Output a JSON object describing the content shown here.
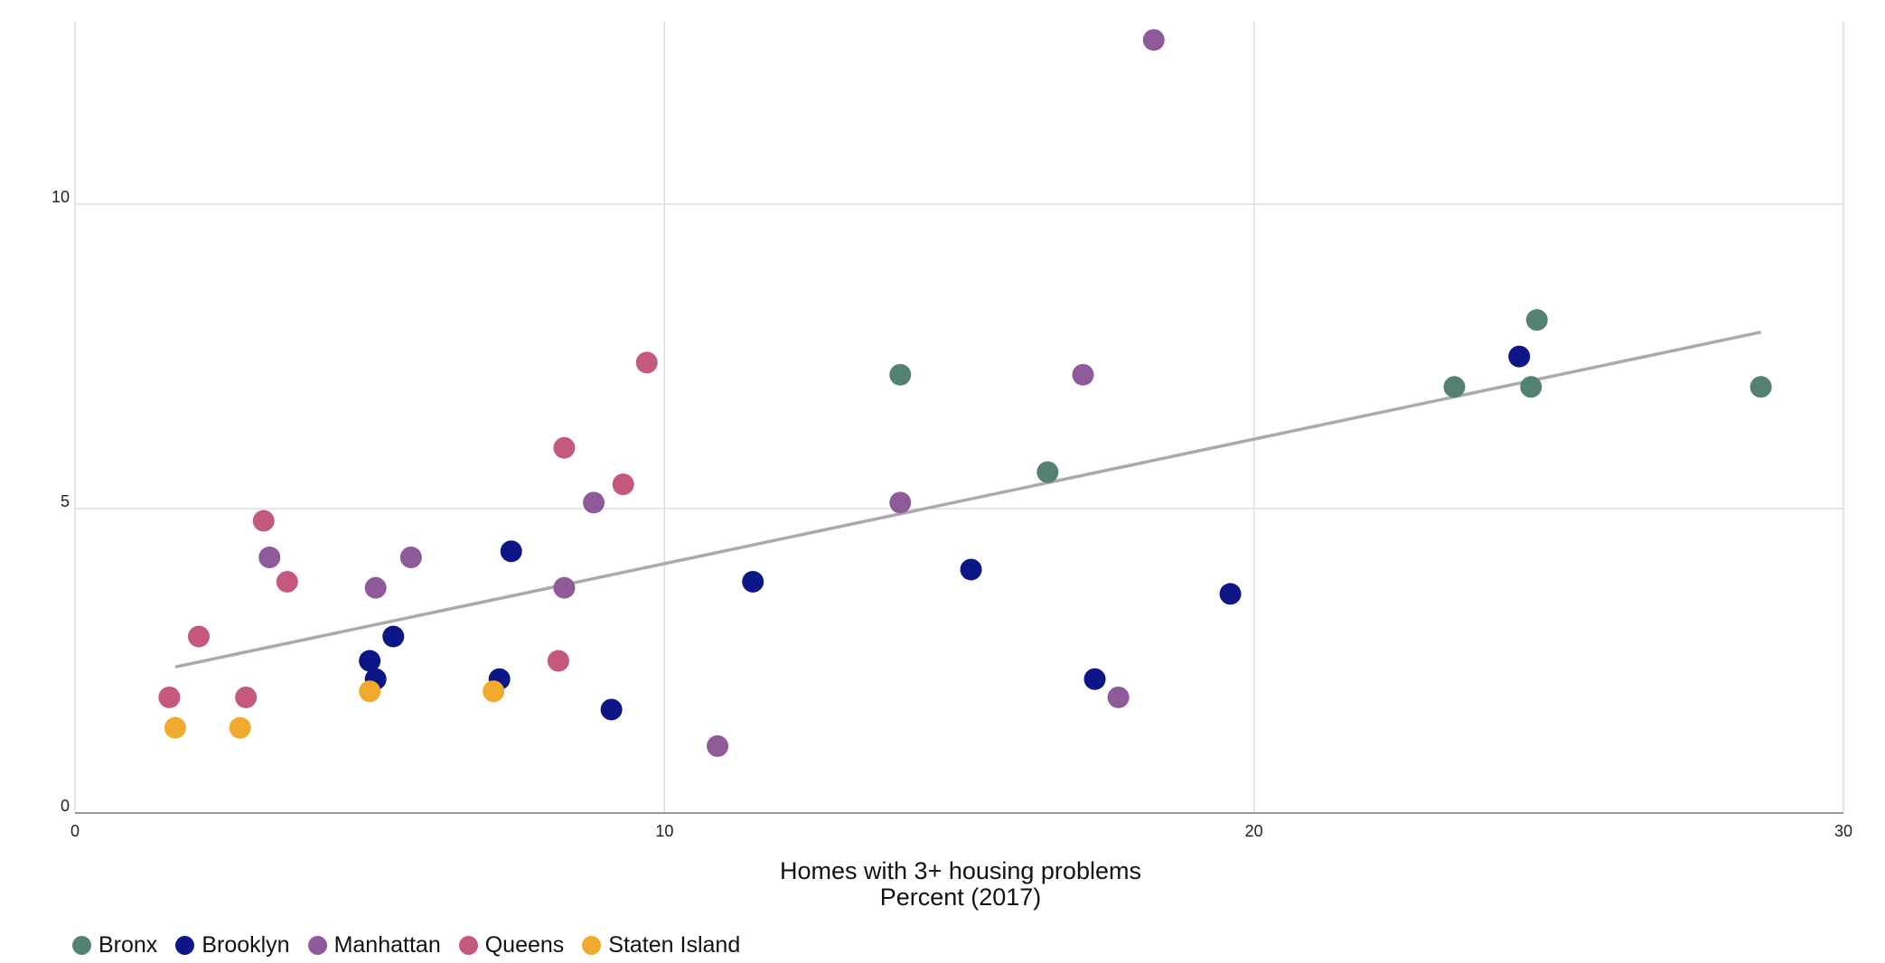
{
  "chart_data": {
    "type": "scatter",
    "xlabel_line1": "Homes with 3+ housing problems",
    "xlabel_line2": "Percent (2017)",
    "ylabel": "",
    "xlim": [
      0,
      30
    ],
    "ylim": [
      0,
      13
    ],
    "x_ticks": [
      "0",
      "10",
      "20",
      "30"
    ],
    "y_ticks": [
      "0",
      "5",
      "10"
    ],
    "x_tick_values": [
      0,
      10,
      20,
      30
    ],
    "y_tick_values": [
      0,
      5,
      10
    ],
    "grid": true,
    "legend_position": "bottom-left",
    "trendline": {
      "from": [
        1.7,
        2.4
      ],
      "to": [
        28.6,
        7.9
      ],
      "color": "#aaaaaa"
    },
    "series": [
      {
        "name": "Bronx",
        "color": "#548272",
        "points": [
          [
            14.0,
            7.2
          ],
          [
            16.5,
            5.6
          ],
          [
            23.4,
            7.0
          ],
          [
            24.7,
            7.0
          ],
          [
            24.8,
            8.1
          ],
          [
            28.6,
            7.0
          ]
        ]
      },
      {
        "name": "Brooklyn",
        "color": "#0d1687",
        "points": [
          [
            5.0,
            2.5
          ],
          [
            5.1,
            2.2
          ],
          [
            5.4,
            2.9
          ],
          [
            7.2,
            2.2
          ],
          [
            7.4,
            4.3
          ],
          [
            9.1,
            1.7
          ],
          [
            11.5,
            3.8
          ],
          [
            15.2,
            4.0
          ],
          [
            17.3,
            2.2
          ],
          [
            19.6,
            3.6
          ],
          [
            24.5,
            7.5
          ]
        ]
      },
      {
        "name": "Manhattan",
        "color": "#8e5a99",
        "points": [
          [
            3.3,
            4.2
          ],
          [
            5.1,
            3.7
          ],
          [
            5.7,
            4.2
          ],
          [
            8.3,
            3.7
          ],
          [
            8.8,
            5.1
          ],
          [
            10.9,
            1.1
          ],
          [
            14.0,
            5.1
          ],
          [
            17.1,
            7.2
          ],
          [
            17.7,
            1.9
          ],
          [
            18.3,
            12.7
          ]
        ]
      },
      {
        "name": "Queens",
        "color": "#c5587f",
        "points": [
          [
            1.6,
            1.9
          ],
          [
            2.1,
            2.9
          ],
          [
            2.9,
            1.9
          ],
          [
            3.2,
            4.8
          ],
          [
            3.6,
            3.8
          ],
          [
            8.2,
            2.5
          ],
          [
            8.3,
            6.0
          ],
          [
            9.3,
            5.4
          ],
          [
            9.7,
            7.4
          ]
        ]
      },
      {
        "name": "Staten Island",
        "color": "#f0aa2d",
        "points": [
          [
            1.7,
            1.4
          ],
          [
            2.8,
            1.4
          ],
          [
            5.0,
            2.0
          ],
          [
            7.1,
            2.0
          ]
        ]
      }
    ]
  }
}
